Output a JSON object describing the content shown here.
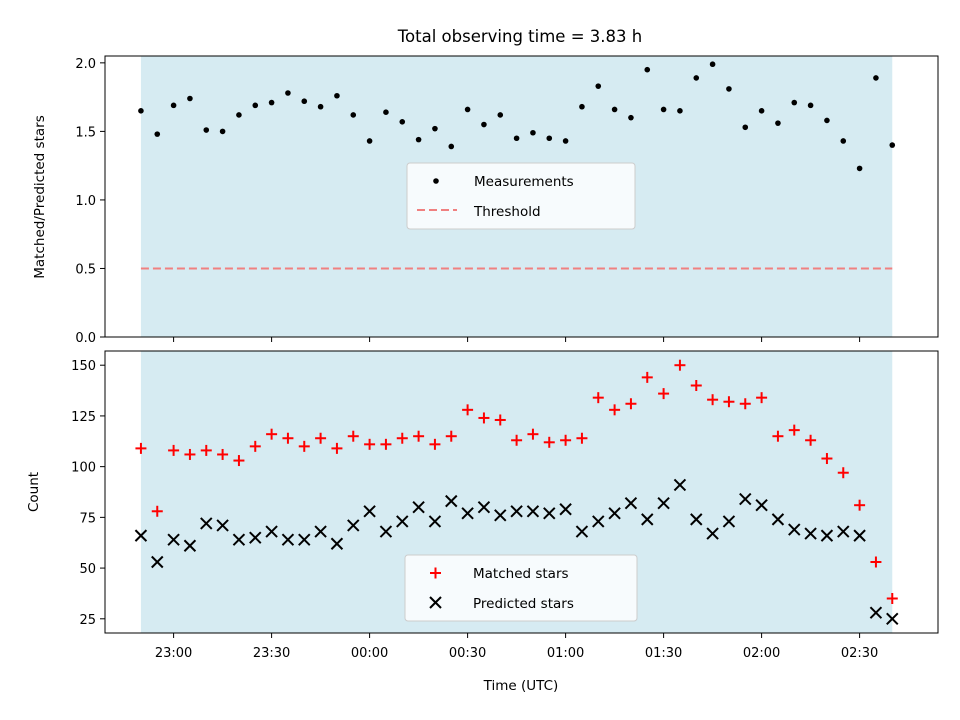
{
  "chart_data": [
    {
      "type": "scatter",
      "title": "Total observing time = 3.83 h",
      "ylabel": "Matched/Predicted stars",
      "xlabel": "",
      "ylim": [
        0,
        2.05
      ],
      "yticks": [
        "0.0",
        "0.5",
        "1.0",
        "1.5",
        "2.0"
      ],
      "ytick_values": [
        0,
        0.5,
        1.0,
        1.5,
        2.0
      ],
      "grid": false,
      "legend_position": "center",
      "shaded_span_color": "#add8e6",
      "series": [
        {
          "name": "Measurements",
          "color": "#000000",
          "marker": "dot",
          "values": [
            1.65,
            1.48,
            1.69,
            1.74,
            1.51,
            1.5,
            1.62,
            1.69,
            1.71,
            1.78,
            1.72,
            1.68,
            1.76,
            1.62,
            1.43,
            1.64,
            1.57,
            1.44,
            1.52,
            1.39,
            1.66,
            1.55,
            1.62,
            1.45,
            1.49,
            1.45,
            1.43,
            1.68,
            1.83,
            1.66,
            1.6,
            1.95,
            1.66,
            1.65,
            1.89,
            1.99,
            1.81,
            1.53,
            1.65,
            1.56,
            1.71,
            1.69,
            1.58,
            1.43,
            1.23,
            1.89,
            1.4
          ]
        },
        {
          "name": "Threshold",
          "color": "#f08080",
          "style": "dashed",
          "value": 0.5
        }
      ]
    },
    {
      "type": "scatter",
      "title": "",
      "ylabel": "Count",
      "xlabel": "Time (UTC)",
      "ylim": [
        18,
        157
      ],
      "yticks": [
        "25",
        "50",
        "75",
        "100",
        "125",
        "150"
      ],
      "ytick_values": [
        25,
        50,
        75,
        100,
        125,
        150
      ],
      "grid": false,
      "legend_position": "bottom-center",
      "shaded_span_color": "#add8e6",
      "series": [
        {
          "name": "Matched stars",
          "color": "#ff0000",
          "marker": "plus",
          "values": [
            109,
            78,
            108,
            106,
            108,
            106,
            103,
            110,
            116,
            114,
            110,
            114,
            109,
            115,
            111,
            111,
            114,
            115,
            111,
            115,
            128,
            124,
            123,
            113,
            116,
            112,
            113,
            114,
            134,
            128,
            131,
            144,
            136,
            150,
            140,
            133,
            132,
            131,
            134,
            115,
            118,
            113,
            104,
            97,
            81,
            53,
            35
          ]
        },
        {
          "name": "Predicted stars",
          "color": "#000000",
          "marker": "x",
          "values": [
            66,
            53,
            64,
            61,
            72,
            71,
            64,
            65,
            68,
            64,
            64,
            68,
            62,
            71,
            78,
            68,
            73,
            80,
            73,
            83,
            77,
            80,
            76,
            78,
            78,
            77,
            79,
            68,
            73,
            77,
            82,
            74,
            82,
            91,
            74,
            67,
            73,
            84,
            81,
            74,
            69,
            67,
            66,
            68,
            66,
            28,
            25
          ]
        }
      ],
      "x_axis": {
        "start": "22:50",
        "end": "02:40",
        "step_minutes": 5,
        "range": [
          "22:39",
          "02:54"
        ],
        "ticks": [
          "23:00",
          "23:30",
          "00:00",
          "00:30",
          "01:00",
          "01:30",
          "02:00",
          "02:30"
        ]
      }
    }
  ]
}
